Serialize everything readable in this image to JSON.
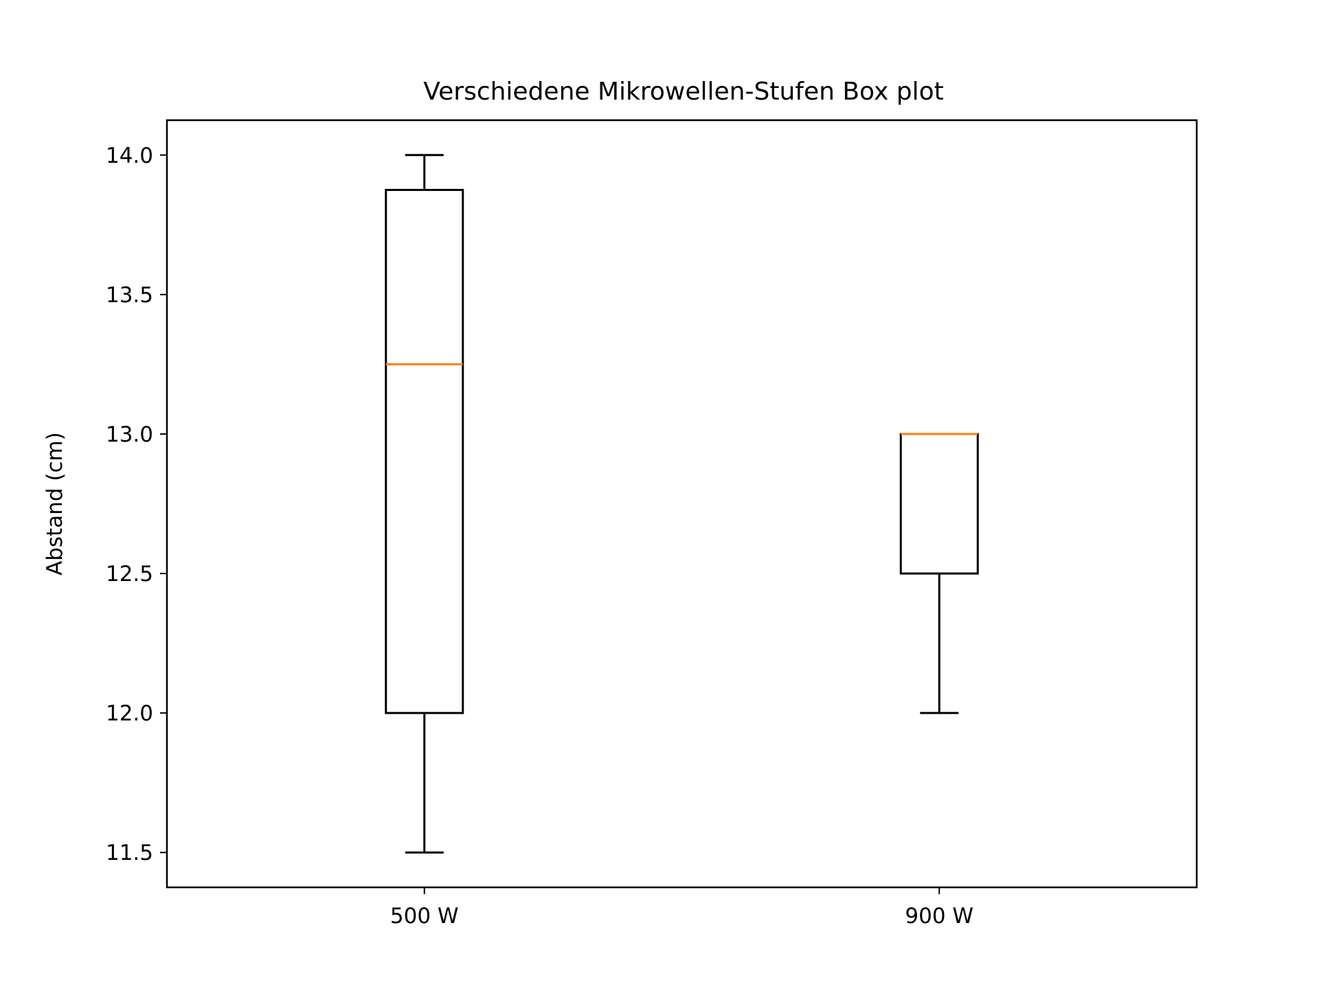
{
  "chart_data": {
    "type": "box",
    "title": "Verschiedene Mikrowellen-Stufen Box plot",
    "xlabel": "",
    "ylabel": "Abstand (cm)",
    "categories": [
      "500 W",
      "900 W"
    ],
    "boxes": [
      {
        "category": "500 W",
        "whisker_low": 11.5,
        "q1": 12.0,
        "median": 13.25,
        "q3": 13.875,
        "whisker_high": 14.0
      },
      {
        "category": "900 W",
        "whisker_low": 12.0,
        "q1": 12.5,
        "median": 13.0,
        "q3": 13.0,
        "whisker_high": 13.0
      }
    ],
    "ylim": [
      11.375,
      14.125
    ],
    "yticks": [
      11.5,
      12.0,
      12.5,
      13.0,
      13.5,
      14.0
    ],
    "ytick_labels": [
      "11.5",
      "12.0",
      "12.5",
      "13.0",
      "13.5",
      "14.0"
    ],
    "grid": false,
    "colors": {
      "box": "#000000",
      "median": "#ff7f0e",
      "background": "#ffffff"
    }
  }
}
